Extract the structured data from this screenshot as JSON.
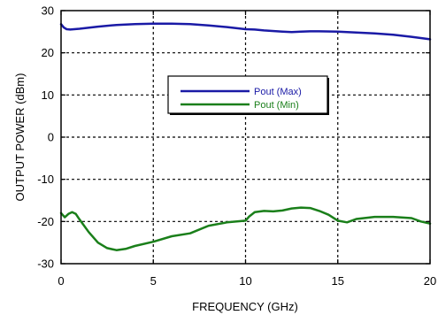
{
  "chart_data": {
    "type": "line",
    "title": "",
    "xlabel": "FREQUENCY (GHz)",
    "ylabel": "OUTPUT POWER (dBm)",
    "xlim": [
      0,
      20
    ],
    "ylim": [
      -30,
      30
    ],
    "xticks": [
      "0",
      "5",
      "10",
      "15",
      "20"
    ],
    "yticks": [
      "30",
      "20",
      "10",
      "0",
      "-10",
      "-20",
      "-30"
    ],
    "grid": "dashed",
    "legend": {
      "placement": "center-top",
      "entries": [
        "Pout (Max)",
        "Pout (Min)"
      ]
    },
    "series": [
      {
        "name": "Pout (Max)",
        "color": "#1a1aa6",
        "x": [
          0,
          0.15,
          0.3,
          0.5,
          1,
          2,
          3,
          4,
          5,
          6,
          7,
          8,
          9,
          10,
          10.5,
          11,
          12,
          12.5,
          13,
          13.5,
          14,
          15,
          16,
          17,
          18,
          19,
          19.5,
          20
        ],
        "y": [
          26.8,
          26,
          25.6,
          25.5,
          25.7,
          26.2,
          26.6,
          26.8,
          26.9,
          26.9,
          26.8,
          26.5,
          26.1,
          25.6,
          25.5,
          25.3,
          25,
          24.9,
          25,
          25.1,
          25.1,
          25,
          24.8,
          24.6,
          24.3,
          23.8,
          23.5,
          23.2
        ]
      },
      {
        "name": "Pout (Min)",
        "color": "#1a7f1a",
        "x": [
          0,
          0.2,
          0.4,
          0.6,
          0.8,
          1,
          1.5,
          2,
          2.5,
          3,
          3.5,
          4,
          5,
          6,
          7,
          8,
          9,
          10,
          10.2,
          10.5,
          11,
          11.5,
          12,
          12.5,
          13,
          13.5,
          14,
          14.5,
          15,
          15.5,
          16,
          17,
          18,
          19,
          19.5,
          20
        ],
        "y": [
          -18,
          -19,
          -18.2,
          -17.8,
          -18.2,
          -19.5,
          -22.5,
          -25,
          -26.3,
          -26.8,
          -26.5,
          -25.8,
          -24.8,
          -23.5,
          -22.8,
          -21,
          -20.2,
          -19.8,
          -18.8,
          -17.8,
          -17.5,
          -17.6,
          -17.4,
          -16.9,
          -16.7,
          -16.8,
          -17.5,
          -18.4,
          -19.8,
          -20.2,
          -19.4,
          -18.9,
          -18.9,
          -19.2,
          -20,
          -20.5
        ]
      }
    ]
  }
}
